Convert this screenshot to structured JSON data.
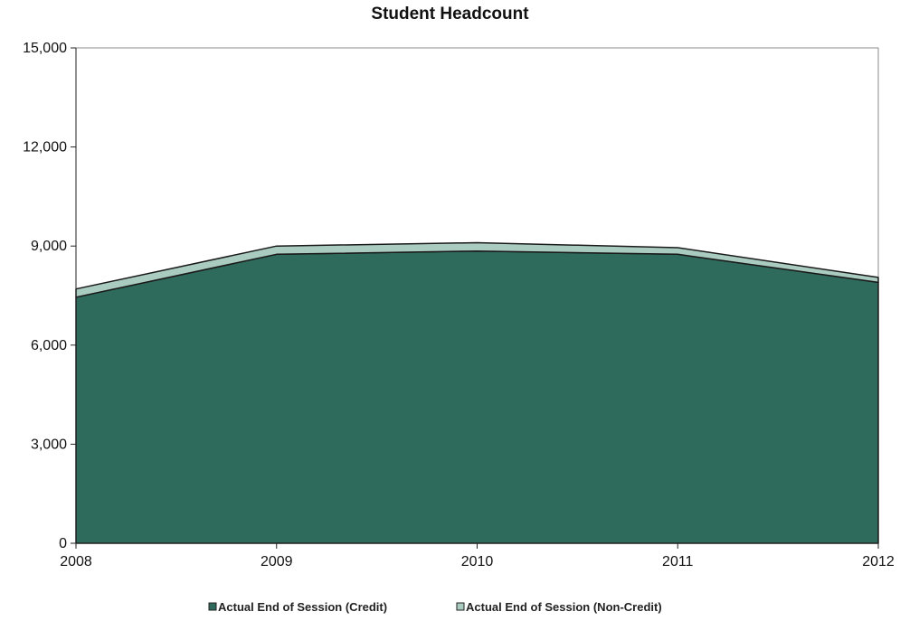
{
  "chart_data": {
    "type": "area",
    "stacked": true,
    "title": "Student Headcount",
    "xlabel": "",
    "ylabel": "",
    "x": [
      "2008",
      "2009",
      "2010",
      "2011",
      "2012"
    ],
    "ylim": [
      0,
      15000
    ],
    "yticks": [
      0,
      3000,
      6000,
      9000,
      12000,
      15000
    ],
    "ytick_labels": [
      "0",
      "3,000",
      "6,000",
      "9,000",
      "12,000",
      "15,000"
    ],
    "grid": false,
    "legend_position": "bottom",
    "series": [
      {
        "name": "Actual End of Session (Credit)",
        "values": [
          7450,
          8750,
          8850,
          8750,
          7900
        ],
        "color": "#2f6b5c"
      },
      {
        "name": "Actual End of Session (Non-Credit)",
        "values": [
          250,
          250,
          250,
          200,
          150
        ],
        "color": "#a9cbc0"
      }
    ]
  }
}
